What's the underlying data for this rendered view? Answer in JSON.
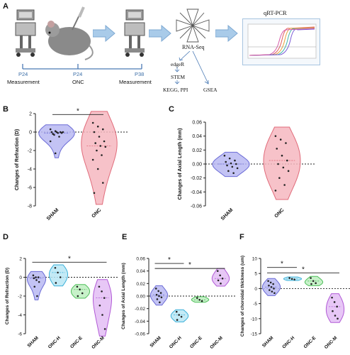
{
  "panel_a": {
    "letter": "A",
    "timeline_labels": [
      "P24",
      "P24",
      "P38"
    ],
    "step_labels": [
      "Measurement",
      "ONC",
      "Measurement"
    ],
    "rnaseq": "RNA-Seq",
    "qrtpcr": "qRT-PCR",
    "pipeline": [
      "edgeR",
      "STEM",
      "KEGG, PPI",
      "GSEA"
    ],
    "colors": {
      "arrow": "#8fb6dd",
      "timeline": "#4a7ab5"
    }
  },
  "chart_data": [
    {
      "panel": "B",
      "type": "violin",
      "ylabel": "Changes of Refraction (D)",
      "categories": [
        "SHAM",
        "ONC"
      ],
      "ylim": [
        -8,
        2
      ],
      "yticks": [
        2,
        0,
        -2,
        -4,
        -6,
        -8
      ],
      "significance": "*",
      "series": [
        {
          "values": [
            0.3,
            0.1,
            0,
            0,
            0,
            -0.1,
            -0.2,
            -0.1,
            0,
            -0.3,
            -0.5,
            -1.0,
            -2.3
          ],
          "color": "#6b6bd6",
          "fill": "#b9b9f2"
        },
        {
          "values": [
            1.0,
            0.6,
            0.3,
            0,
            -0.5,
            -1.0,
            -1.2,
            -1.5,
            -1.6,
            -2.0,
            -2.5,
            -3.0,
            -4.0,
            -5.5,
            -6.6
          ],
          "color": "#e06b7a",
          "fill": "#f6b7bf"
        }
      ]
    },
    {
      "panel": "C",
      "type": "violin",
      "ylabel": "Changes of Axial Length (mm)",
      "categories": [
        "SHAM",
        "ONC"
      ],
      "ylim": [
        -0.06,
        0.06
      ],
      "yticks": [
        "0.06",
        "0.04",
        "0.02",
        "0.00",
        "-0.02",
        "-0.04",
        "-0.06"
      ],
      "series": [
        {
          "values": [
            0.012,
            0.008,
            0.005,
            0.003,
            0.001,
            0,
            -0.002,
            -0.004,
            -0.006,
            -0.01,
            -0.013
          ],
          "color": "#6b6bd6",
          "fill": "#b9b9f2"
        },
        {
          "values": [
            0.04,
            0.035,
            0.03,
            0.022,
            0.012,
            0.005,
            0,
            -0.005,
            -0.01,
            -0.02,
            -0.03,
            -0.038
          ],
          "color": "#e06b7a",
          "fill": "#f6b7bf"
        }
      ]
    },
    {
      "panel": "D",
      "type": "violin",
      "ylabel": "Changes of Refraction (D)",
      "categories": [
        "SHAM",
        "ONC-H",
        "ONC-E",
        "ONC-M"
      ],
      "ylim": [
        -6,
        2
      ],
      "yticks": [
        2,
        0,
        -2,
        -4,
        -6
      ],
      "significance": "*",
      "series": [
        {
          "values": [
            0.2,
            0,
            0,
            -0.1,
            -0.3,
            -0.5,
            -1.0,
            -2.0
          ],
          "color": "#6b6bd6",
          "fill": "#b9b9f2"
        },
        {
          "values": [
            1.0,
            0.5,
            0,
            -0.6
          ],
          "color": "#3ab0d9",
          "fill": "#b8e6f5"
        },
        {
          "values": [
            -1.0,
            -1.3,
            -1.7,
            -2.0
          ],
          "color": "#4fbf5a",
          "fill": "#bdeec0"
        },
        {
          "values": [
            -1.0,
            -1.5,
            -2.2,
            -3.0,
            -4.0,
            -5.5
          ],
          "color": "#b15ad6",
          "fill": "#e3bdf5"
        }
      ]
    },
    {
      "panel": "E",
      "type": "violin",
      "ylabel": "Changes of Axial Length (mm)",
      "categories": [
        "SHAM",
        "ONC-H",
        "ONC-E",
        "ONC-M"
      ],
      "ylim": [
        -0.06,
        0.06
      ],
      "yticks": [
        "0.06",
        "0.04",
        "0.02",
        "0.00",
        "-0.02",
        "-0.04",
        "-0.06"
      ],
      "significance": [
        "*",
        "*"
      ],
      "series": [
        {
          "values": [
            0.012,
            0.008,
            0.005,
            0.002,
            0,
            -0.002,
            -0.005,
            -0.01
          ],
          "color": "#6b6bd6",
          "fill": "#b9b9f2"
        },
        {
          "values": [
            -0.025,
            -0.03,
            -0.033,
            -0.038
          ],
          "color": "#3ab0d9",
          "fill": "#b8e6f5"
        },
        {
          "values": [
            -0.003,
            -0.006,
            -0.008
          ],
          "color": "#4fbf5a",
          "fill": "#bdeec0"
        },
        {
          "values": [
            0.04,
            0.033,
            0.028,
            0.025,
            0.02
          ],
          "color": "#b15ad6",
          "fill": "#e3bdf5"
        }
      ]
    },
    {
      "panel": "F",
      "type": "violin",
      "ylabel": "Changes of choroidal thickness (um)",
      "categories": [
        "SHAM",
        "ONC-H",
        "ONC-E",
        "ONC-M"
      ],
      "ylim": [
        -15,
        10
      ],
      "yticks": [
        10,
        5,
        0,
        -5,
        -10,
        -15
      ],
      "significance": [
        "*",
        "*"
      ],
      "series": [
        {
          "values": [
            2.5,
            2,
            1.5,
            1,
            0.5,
            0,
            -0.5,
            -1,
            -1.5
          ],
          "color": "#6b6bd6",
          "fill": "#b9b9f2"
        },
        {
          "values": [
            3.5,
            3.2,
            3.0
          ],
          "color": "#3ab0d9",
          "fill": "#b8e6f5"
        },
        {
          "values": [
            3.5,
            2.5,
            1.8,
            1.5
          ],
          "color": "#4fbf5a",
          "fill": "#bdeec0"
        },
        {
          "values": [
            -3,
            -4.5,
            -6,
            -7.5,
            -9,
            -10
          ],
          "color": "#b15ad6",
          "fill": "#e3bdf5"
        }
      ]
    }
  ]
}
